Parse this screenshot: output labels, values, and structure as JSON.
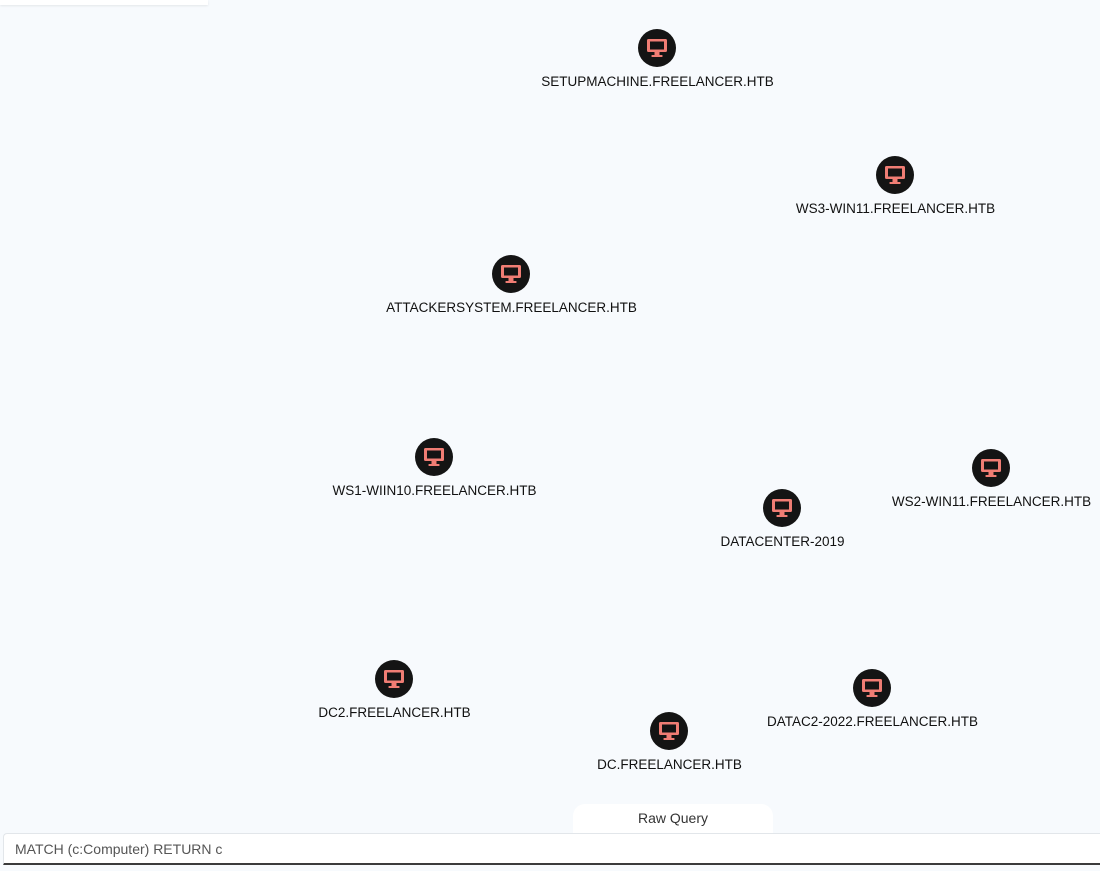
{
  "colors": {
    "background": "#f7fafd",
    "node_fill": "#141414",
    "node_icon": "#f07d74",
    "label_text": "#111111"
  },
  "graph": {
    "node_icon": "desktop-computer-icon",
    "nodes": [
      {
        "label": "SETUPMACHINE.FREELANCER.HTB"
      },
      {
        "label": "WS3-WIN11.FREELANCER.HTB"
      },
      {
        "label": "ATTACKERSYSTEM.FREELANCER.HTB"
      },
      {
        "label": "WS1-WIIN10.FREELANCER.HTB"
      },
      {
        "label": "WS2-WIN11.FREELANCER.HTB"
      },
      {
        "label": "DATACENTER-2019"
      },
      {
        "label": "DC2.FREELANCER.HTB"
      },
      {
        "label": "DATAC2-2022.FREELANCER.HTB"
      },
      {
        "label": "DC.FREELANCER.HTB"
      }
    ]
  },
  "query_panel": {
    "tab_label": "Raw Query",
    "query_value": "MATCH (c:Computer) RETURN c"
  }
}
